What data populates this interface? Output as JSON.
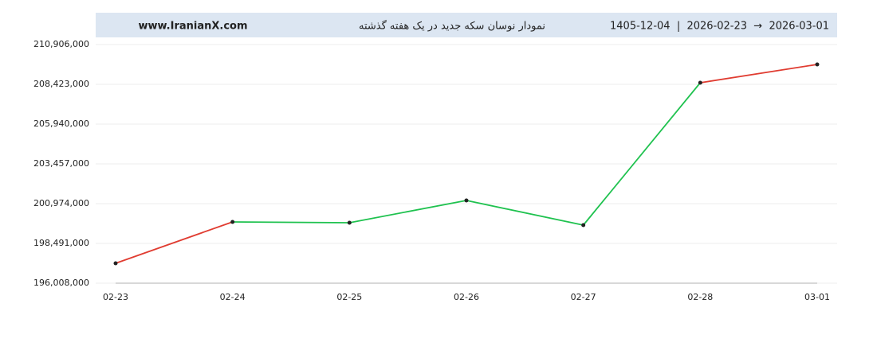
{
  "chart_data": {
    "type": "line",
    "title": "نمودار نوسان سکه جدید در یک هفته گذشته",
    "source": "www.IranianX.com",
    "date_range": "1405-12-04  |  2026-02-23  →  2026-03-01",
    "categories": [
      "02-23",
      "02-24",
      "02-25",
      "02-26",
      "02-27",
      "02-28",
      "03-01"
    ],
    "series": [
      {
        "values": [
          197250000,
          199832000,
          199782000,
          201173000,
          199633000,
          208522000,
          209665000
        ],
        "segment_colors": [
          "#e03c31",
          "#1fc24f",
          "#1fc24f",
          "#1fc24f",
          "#1fc24f",
          "#e03c31",
          "#1fc24f"
        ]
      }
    ],
    "ylim": [
      196008000,
      210906000
    ],
    "yticks": [
      {
        "value": 196008000,
        "label": "196,008,000"
      },
      {
        "value": 198491000,
        "label": "198,491,000"
      },
      {
        "value": 200974000,
        "label": "200,974,000"
      },
      {
        "value": 203457000,
        "label": "203,457,000"
      },
      {
        "value": 205940000,
        "label": "205,940,000"
      },
      {
        "value": 208423000,
        "label": "208,423,000"
      },
      {
        "value": 210906000,
        "label": "210,906,000"
      }
    ],
    "grid": true
  }
}
